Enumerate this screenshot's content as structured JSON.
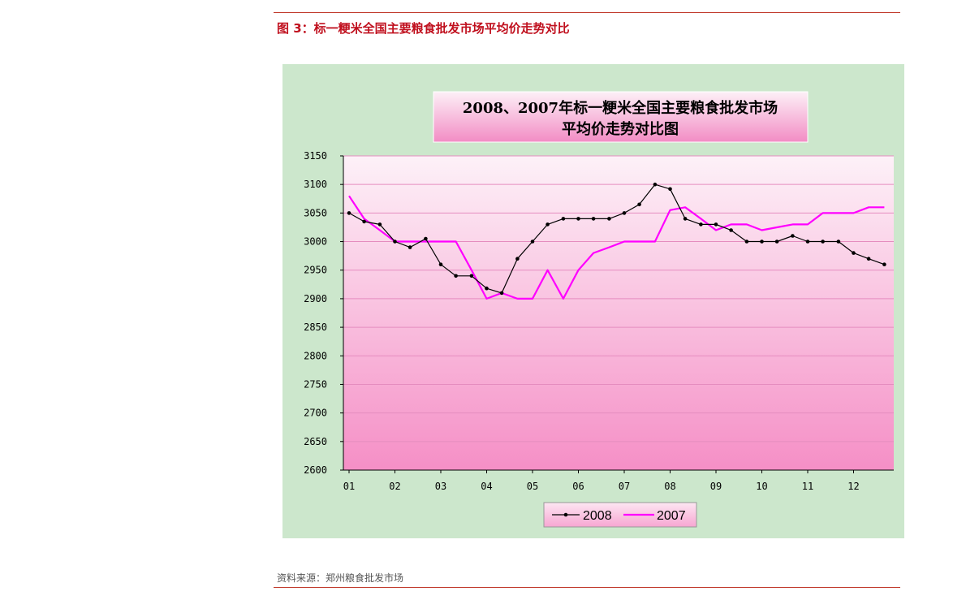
{
  "figure_title": "图 3：标一粳米全国主要粮食批发市场平均价走势对比",
  "source": "资料来源：郑州粮食批发市场",
  "colors": {
    "series_2008": "#000000",
    "series_2007": "#ff00ff",
    "panel": "#cce7cc",
    "title_red": "#c0101e"
  },
  "chart_data": {
    "type": "line",
    "title_line1": "2008、2007年标一粳米全国主要粮食批发市场",
    "title_line2": "平均价走势对比图",
    "categories": [
      "01",
      "02",
      "03",
      "04",
      "05",
      "06",
      "07",
      "08",
      "09",
      "10",
      "11",
      "12"
    ],
    "ylim": [
      2600,
      3150
    ],
    "yticks": [
      2600,
      2650,
      2700,
      2750,
      2800,
      2850,
      2900,
      2950,
      3000,
      3050,
      3100,
      3150
    ],
    "ytick_labels": [
      "2600",
      "2650",
      "2700",
      "2750",
      "2800",
      "2850",
      "2900",
      "2950",
      "3000",
      "3050",
      "3100",
      "3150"
    ],
    "grid": true,
    "legend_position": "bottom",
    "series": [
      {
        "name": "2008",
        "marker": "dot",
        "color": "#000000",
        "x": [
          1,
          1.33,
          1.67,
          2,
          2.33,
          2.67,
          3,
          3.33,
          3.67,
          4,
          4.33,
          4.67,
          5,
          5.33,
          5.67,
          6,
          6.33,
          6.67,
          7,
          7.33,
          7.67,
          8,
          8.33,
          8.67,
          9,
          9.33,
          9.67,
          10,
          10.33,
          10.67,
          11,
          11.33,
          11.67,
          12,
          12.33,
          12.67
        ],
        "values": [
          3050,
          3035,
          3030,
          3000,
          2990,
          3005,
          2960,
          2940,
          2940,
          2918,
          2910,
          2970,
          3000,
          3030,
          3040,
          3040,
          3040,
          3040,
          3050,
          3065,
          3100,
          3092,
          3040,
          3030,
          3030,
          3020,
          3000,
          3000,
          3000,
          3010,
          3000,
          3000,
          3000,
          2980,
          2970,
          2960
        ]
      },
      {
        "name": "2007",
        "marker": "none",
        "color": "#ff00ff",
        "x": [
          1,
          1.33,
          1.67,
          2,
          2.33,
          2.67,
          3,
          3.33,
          3.67,
          4,
          4.33,
          4.67,
          5,
          5.33,
          5.67,
          6,
          6.33,
          6.67,
          7,
          7.33,
          7.67,
          8,
          8.33,
          8.67,
          9,
          9.33,
          9.67,
          10,
          10.33,
          10.67,
          11,
          11.33,
          11.67,
          12,
          12.33,
          12.67
        ],
        "values": [
          3080,
          3040,
          3020,
          3000,
          3000,
          3000,
          3000,
          3000,
          2950,
          2900,
          2910,
          2900,
          2900,
          2950,
          2900,
          2950,
          2980,
          2990,
          3000,
          3000,
          3000,
          3055,
          3060,
          3040,
          3020,
          3030,
          3030,
          3020,
          3025,
          3030,
          3030,
          3050,
          3050,
          3050,
          3060,
          3060
        ]
      }
    ]
  }
}
